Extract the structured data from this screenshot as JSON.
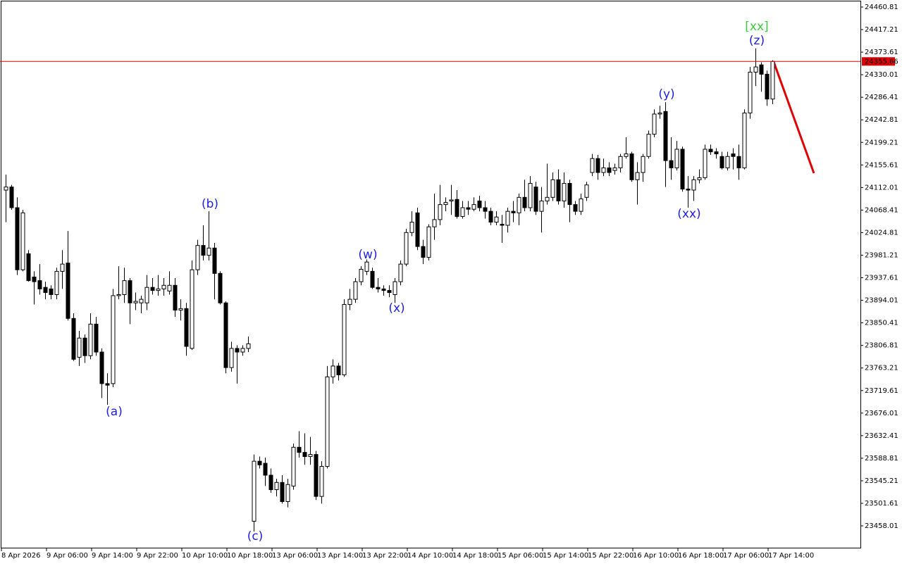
{
  "chart_data": {
    "type": "candlestick",
    "categories": [
      "8 Apr 2026",
      null,
      null,
      null,
      null,
      null,
      null,
      null,
      "9 Apr 06:00",
      null,
      null,
      null,
      null,
      null,
      null,
      null,
      "9 Apr 14:00",
      null,
      null,
      null,
      null,
      null,
      null,
      null,
      "9 Apr 22:00",
      null,
      null,
      null,
      null,
      null,
      null,
      null,
      "10 Apr 10:00",
      null,
      null,
      null,
      null,
      null,
      null,
      null,
      "10 Apr 18:00",
      null,
      null,
      null,
      null,
      null,
      null,
      null,
      "13 Apr 06:00",
      null,
      null,
      null,
      null,
      null,
      null,
      null,
      "13 Apr 14:00",
      null,
      null,
      null,
      null,
      null,
      null,
      null,
      "13 Apr 22:00",
      null,
      null,
      null,
      null,
      null,
      null,
      null,
      "14 Apr 10:00",
      null,
      null,
      null,
      null,
      null,
      null,
      null,
      "14 Apr 18:00",
      null,
      null,
      null,
      null,
      null,
      null,
      null,
      "15 Apr 06:00",
      null,
      null,
      null,
      null,
      null,
      null,
      null,
      "15 Apr 14:00",
      null,
      null,
      null,
      null,
      null,
      null,
      null,
      "15 Apr 22:00",
      null,
      null,
      null,
      null,
      null,
      null,
      null,
      "16 Apr 10:00",
      null,
      null,
      null,
      null,
      null,
      null,
      null,
      "16 Apr 18:00",
      null,
      null,
      null,
      null,
      null,
      null,
      null,
      "17 Apr 06:00",
      null,
      null,
      null,
      null,
      null,
      null,
      null,
      "17 Apr 14:00"
    ],
    "ohlc": [
      [
        24107,
        24137,
        24045,
        24113
      ],
      [
        24113,
        24117,
        24069,
        24073
      ],
      [
        24073,
        24093,
        23943,
        23953
      ],
      [
        23953,
        24069,
        23950,
        24063
      ],
      [
        23984,
        23991,
        23930,
        23932
      ],
      [
        23939,
        23950,
        23886,
        23930
      ],
      [
        23932,
        23964,
        23905,
        23916
      ],
      [
        23919,
        23930,
        23896,
        23909
      ],
      [
        23916,
        23923,
        23896,
        23905
      ],
      [
        23905,
        23957,
        23896,
        23950
      ],
      [
        23950,
        23991,
        23916,
        23964
      ],
      [
        23966,
        24028,
        23855,
        23859
      ],
      [
        23859,
        23869,
        23777,
        23780
      ],
      [
        23784,
        23835,
        23767,
        23821
      ],
      [
        23821,
        23828,
        23773,
        23787
      ],
      [
        23787,
        23869,
        23780,
        23848
      ],
      [
        23848,
        23862,
        23787,
        23794
      ],
      [
        23794,
        23801,
        23705,
        23733
      ],
      [
        23733,
        23753,
        23692,
        23730
      ],
      [
        23733,
        23916,
        23726,
        23903
      ],
      [
        23903,
        23960,
        23896,
        23905
      ],
      [
        23905,
        23957,
        23889,
        23932
      ],
      [
        23932,
        23937,
        23848,
        23889
      ],
      [
        23889,
        23909,
        23875,
        23892
      ],
      [
        23889,
        23903,
        23869,
        23896
      ],
      [
        23889,
        23943,
        23875,
        23919
      ],
      [
        23919,
        23937,
        23905,
        23913
      ],
      [
        23913,
        23943,
        23903,
        23916
      ],
      [
        23916,
        23937,
        23903,
        23923
      ],
      [
        23912,
        23950,
        23905,
        23923
      ],
      [
        23923,
        23937,
        23862,
        23875
      ],
      [
        23875,
        23896,
        23855,
        23878
      ],
      [
        23878,
        23889,
        23787,
        23805
      ],
      [
        23801,
        23971,
        23798,
        23953
      ],
      [
        23953,
        24011,
        23943,
        24000
      ],
      [
        24000,
        24039,
        23971,
        23981
      ],
      [
        23981,
        24066,
        23971,
        23995
      ],
      [
        23995,
        24005,
        23896,
        23946
      ],
      [
        23946,
        23950,
        23886,
        23889
      ],
      [
        23889,
        23892,
        23753,
        23764
      ],
      [
        23764,
        23814,
        23756,
        23801
      ],
      [
        23801,
        23807,
        23733,
        23794
      ],
      [
        23794,
        23807,
        23787,
        23801
      ],
      [
        23801,
        23824,
        23794,
        23810
      ],
      [
        23467,
        23596,
        23447,
        23583
      ],
      [
        23583,
        23592,
        23569,
        23576
      ],
      [
        23579,
        23590,
        23535,
        23556
      ],
      [
        23556,
        23569,
        23522,
        23528
      ],
      [
        23528,
        23549,
        23515,
        23542
      ],
      [
        23542,
        23556,
        23501,
        23505
      ],
      [
        23505,
        23549,
        23494,
        23538
      ],
      [
        23535,
        23617,
        23528,
        23610
      ],
      [
        23610,
        23641,
        23590,
        23600
      ],
      [
        23600,
        23637,
        23576,
        23592
      ],
      [
        23592,
        23630,
        23576,
        23596
      ],
      [
        23596,
        23603,
        23508,
        23515
      ],
      [
        23515,
        23583,
        23501,
        23573
      ],
      [
        23573,
        23767,
        23569,
        23746
      ],
      [
        23746,
        23780,
        23733,
        23767
      ],
      [
        23767,
        23773,
        23739,
        23750
      ],
      [
        23750,
        23896,
        23746,
        23886
      ],
      [
        23886,
        23916,
        23875,
        23896
      ],
      [
        23896,
        23937,
        23889,
        23930
      ],
      [
        23930,
        23960,
        23923,
        23954
      ],
      [
        23950,
        23973,
        23943,
        23968
      ],
      [
        23950,
        23957,
        23916,
        23919
      ],
      [
        23919,
        23937,
        23909,
        23916
      ],
      [
        23916,
        23923,
        23903,
        23913
      ],
      [
        23913,
        23923,
        23900,
        23909
      ],
      [
        23905,
        23937,
        23889,
        23930
      ],
      [
        23930,
        23971,
        23923,
        23964
      ],
      [
        23964,
        24032,
        23960,
        24025
      ],
      [
        24025,
        24066,
        24018,
        24045
      ],
      [
        24063,
        24073,
        23991,
        23998
      ],
      [
        23998,
        24011,
        23964,
        23977
      ],
      [
        23977,
        24041,
        23971,
        24036
      ],
      [
        24036,
        24100,
        24011,
        24050
      ],
      [
        24050,
        24117,
        24039,
        24079
      ],
      [
        24079,
        24093,
        24066,
        24083
      ],
      [
        24086,
        24117,
        24059,
        24088
      ],
      [
        24089,
        24107,
        24052,
        24056
      ],
      [
        24056,
        24086,
        24052,
        24073
      ],
      [
        24073,
        24086,
        24059,
        24070
      ],
      [
        24070,
        24093,
        24066,
        24079
      ],
      [
        24086,
        24096,
        24066,
        24073
      ],
      [
        24073,
        24086,
        24052,
        24066
      ],
      [
        24066,
        24073,
        24039,
        24045
      ],
      [
        24045,
        24066,
        24039,
        24055
      ],
      [
        24041,
        24059,
        24005,
        24039
      ],
      [
        24039,
        24073,
        24025,
        24066
      ],
      [
        24066,
        24086,
        24045,
        24063
      ],
      [
        24063,
        24100,
        24039,
        24093
      ],
      [
        24093,
        24127,
        24066,
        24073
      ],
      [
        24073,
        24134,
        24066,
        24120
      ],
      [
        24113,
        24123,
        24059,
        24066
      ],
      [
        24066,
        24113,
        24025,
        24086
      ],
      [
        24086,
        24158,
        24079,
        24093
      ],
      [
        24093,
        24141,
        24086,
        24127
      ],
      [
        24127,
        24147,
        24079,
        24086
      ],
      [
        24086,
        24141,
        24073,
        24120
      ],
      [
        24120,
        24127,
        24045,
        24079
      ],
      [
        24079,
        24086,
        24059,
        24066
      ],
      [
        24066,
        24100,
        24059,
        24090
      ],
      [
        24093,
        24123,
        24086,
        24117
      ],
      [
        24141,
        24177,
        24134,
        24168
      ],
      [
        24168,
        24175,
        24127,
        24141
      ],
      [
        24141,
        24168,
        24134,
        24150
      ],
      [
        24150,
        24161,
        24134,
        24141
      ],
      [
        24145,
        24158,
        24137,
        24150
      ],
      [
        24150,
        24177,
        24141,
        24172
      ],
      [
        24172,
        24209,
        24168,
        24177
      ],
      [
        24177,
        24181,
        24123,
        24127
      ],
      [
        24127,
        24161,
        24079,
        24141
      ],
      [
        24141,
        24177,
        24123,
        24172
      ],
      [
        24172,
        24222,
        24168,
        24215
      ],
      [
        24215,
        24263,
        24209,
        24254
      ],
      [
        24254,
        24270,
        24245,
        24256
      ],
      [
        24259,
        24277,
        24113,
        24164
      ],
      [
        24164,
        24209,
        24127,
        24150
      ],
      [
        24150,
        24202,
        24145,
        24186
      ],
      [
        24186,
        24191,
        24104,
        24109
      ],
      [
        24109,
        24134,
        24073,
        24107
      ],
      [
        24107,
        24134,
        24086,
        24127
      ],
      [
        24127,
        24147,
        24120,
        24131
      ],
      [
        24131,
        24195,
        24127,
        24186
      ],
      [
        24186,
        24195,
        24175,
        24181
      ],
      [
        24181,
        24188,
        24168,
        24177
      ],
      [
        24172,
        24181,
        24147,
        24150
      ],
      [
        24150,
        24181,
        24145,
        24172
      ],
      [
        24177,
        24188,
        24147,
        24172
      ],
      [
        24172,
        24195,
        24127,
        24150
      ],
      [
        24150,
        24263,
        24147,
        24256
      ],
      [
        24256,
        24345,
        24245,
        24335
      ],
      [
        24335,
        24381,
        24308,
        24345
      ],
      [
        24349,
        24354,
        24297,
        24331
      ],
      [
        24331,
        24338,
        24270,
        24283
      ],
      [
        24283,
        24358,
        24273,
        24355.66
      ]
    ],
    "ylim": [
      23414.5,
      24474.4
    ],
    "yticks": [
      23458.01,
      23501.61,
      23545.21,
      23588.81,
      23632.41,
      23676.01,
      23719.61,
      23763.21,
      23806.81,
      23850.41,
      23894.01,
      23937.61,
      23981.21,
      24024.81,
      24068.41,
      24112.01,
      24155.61,
      24199.21,
      24242.81,
      24286.41,
      24330.01,
      24373.61,
      24417.21,
      24460.81
    ],
    "last_price": 24355.66,
    "last_price_color": "#e00000",
    "up_color": "#ffffff",
    "down_color": "#000000",
    "annotations": [
      "(a)",
      "(b)",
      "(c)",
      "(w)",
      "(x)",
      "(y)",
      "(xx)",
      "(z)",
      "[xx]"
    ],
    "annotation_colors": [
      "#2020e0",
      "#2020e0",
      "#2020e0",
      "#2020e0",
      "#2020e0",
      "#2020e0",
      "#2020e0",
      "#2020e0",
      "#3cc83c"
    ]
  }
}
